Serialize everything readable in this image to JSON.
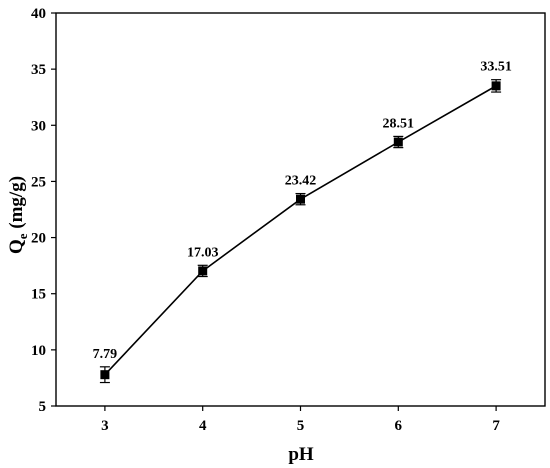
{
  "chart_data": {
    "type": "line",
    "xlabel": "pH",
    "ylabel": {
      "base": "Q",
      "subscript": "e",
      "suffix": " (mg/g)"
    },
    "xlim": [
      2.5,
      7.5
    ],
    "ylim": [
      5,
      40
    ],
    "xticks": [
      3,
      4,
      5,
      6,
      7
    ],
    "yticks": [
      5,
      10,
      15,
      20,
      25,
      30,
      35,
      40
    ],
    "grid": false,
    "x": [
      3,
      4,
      5,
      6,
      7
    ],
    "y": [
      7.79,
      17.03,
      23.42,
      28.51,
      33.51
    ],
    "error": [
      0.7,
      0.5,
      0.5,
      0.5,
      0.55
    ],
    "data_labels": [
      "7.79",
      "17.03",
      "23.42",
      "28.51",
      "33.51"
    ],
    "colors": {
      "line": "#000000",
      "marker": "#000000"
    }
  }
}
